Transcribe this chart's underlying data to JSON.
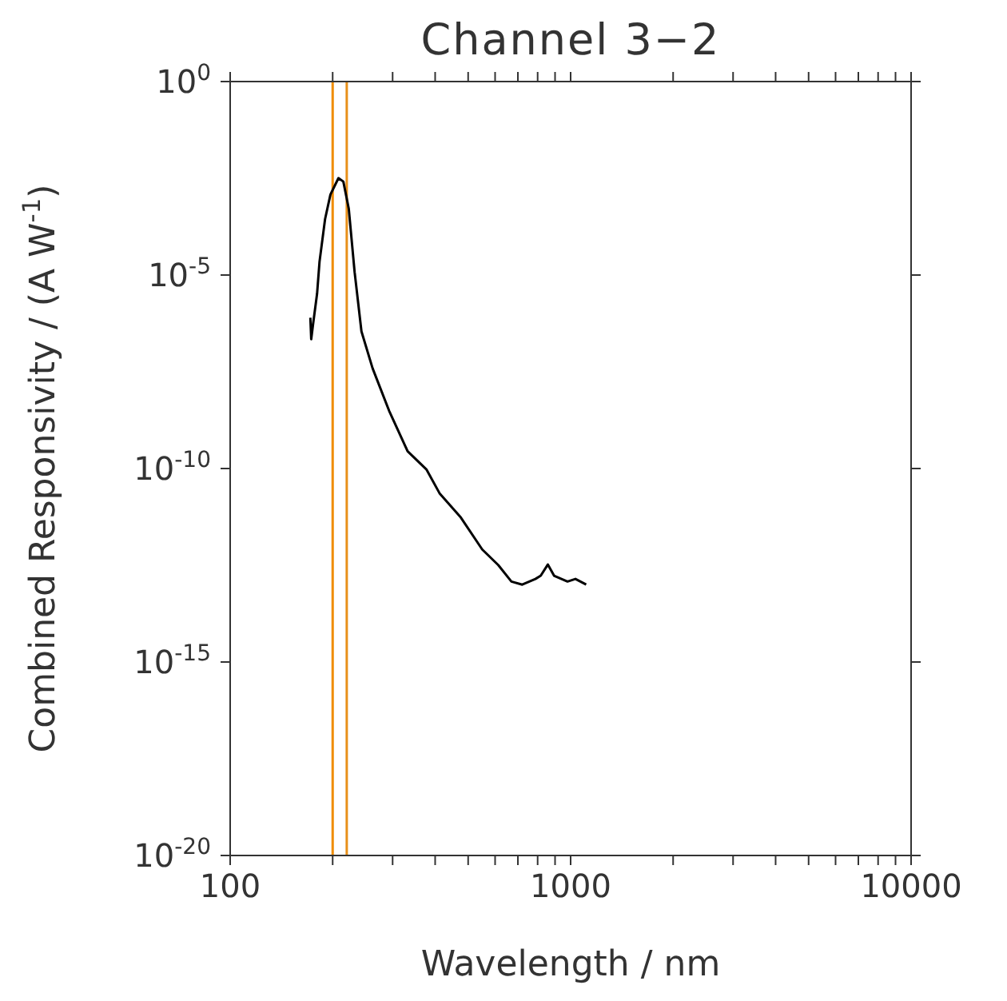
{
  "chart_data": {
    "type": "line",
    "title": "Channel 3−2",
    "xlabel": "Wavelength / nm",
    "ylabel": "Combined Responsivity / (A W$^{-1}$)",
    "log": "xy",
    "marker": "none",
    "line_style": "solid",
    "xlim": [
      100,
      10000
    ],
    "xticks": [
      100,
      {
        "value": 200,
        "label": null
      },
      {
        "value": 300,
        "label": null
      },
      {
        "value": 400,
        "label": null
      },
      {
        "value": 500,
        "label": null
      },
      {
        "value": 600,
        "label": null
      },
      {
        "value": 700,
        "label": null
      },
      {
        "value": 800,
        "label": null
      },
      {
        "value": 900,
        "label": null
      },
      1000,
      {
        "value": 2000,
        "label": null
      },
      {
        "value": 3000,
        "label": null
      },
      {
        "value": 4000,
        "label": null
      },
      {
        "value": 5000,
        "label": null
      },
      {
        "value": 6000,
        "label": null
      },
      {
        "value": 7000,
        "label": null
      },
      {
        "value": 8000,
        "label": null
      },
      {
        "value": 9000,
        "label": null
      },
      10000
    ],
    "ylim": [
      1e-20,
      1
    ],
    "yticks": [
      {
        "value": 1e-20,
        "label": "10$^{-20}$"
      },
      {
        "value": 1e-15,
        "label": "10$^{-15}$"
      },
      {
        "value": 1e-10,
        "label": "10$^{-10}$"
      },
      {
        "value": 1e-05,
        "label": "10$^{-5}$"
      },
      {
        "value": 1,
        "label": "10$^{0}$"
      }
    ],
    "x": [
      172,
      173,
      175,
      180,
      183,
      190,
      197,
      208,
      215,
      223,
      232,
      243,
      262,
      293,
      332,
      377,
      412,
      476,
      550,
      613,
      670,
      721,
      788,
      817,
      857,
      894,
      979,
      1033,
      1111
    ],
    "series": [
      {
        "color": "#000000",
        "values": [
          7.9e-07,
          2.2e-07,
          5e-07,
          3.3e-06,
          2.2e-05,
          0.00028,
          0.0012,
          0.0032,
          0.0026,
          0.00052,
          1.2e-05,
          3.5e-07,
          3.9e-08,
          3.1e-09,
          2.8e-10,
          9.5e-11,
          2.3e-11,
          5.4e-12,
          8.1e-13,
          3.2e-13,
          1.2e-13,
          1e-13,
          1.4e-13,
          1.7e-13,
          3.3e-13,
          1.7e-13,
          1.2e-13,
          1.4e-13,
          1e-13
        ]
      }
    ],
    "ref_lines": [
      {
        "axis": "x",
        "value": 200,
        "color": "#f08c00",
        "line_style": "solid"
      },
      {
        "axis": "x",
        "value": 220,
        "color": "#e8901a",
        "line_style": "solid"
      }
    ]
  }
}
